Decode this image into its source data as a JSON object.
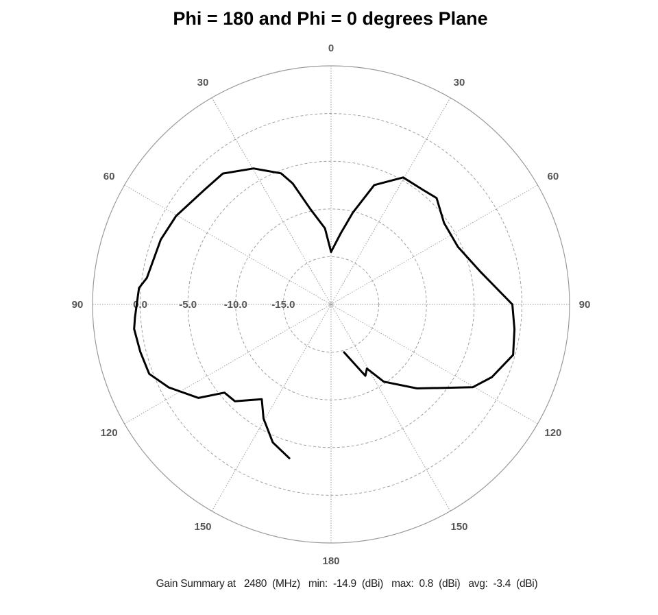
{
  "chart_data": {
    "type": "polar-line",
    "title": "Phi = 180 and Phi = 0 degrees Plane",
    "angular_axis": {
      "zero_location": "top",
      "tick_step_deg": 30,
      "tick_labels": [
        {
          "angle": 0,
          "label": "0"
        },
        {
          "angle": 30,
          "label": "30"
        },
        {
          "angle": 60,
          "label": "60"
        },
        {
          "angle": 90,
          "label": "90"
        },
        {
          "angle": 120,
          "label": "120"
        },
        {
          "angle": 150,
          "label": "150"
        },
        {
          "angle": 180,
          "label": "180"
        },
        {
          "angle": -150,
          "label": "150"
        },
        {
          "angle": -120,
          "label": "120"
        },
        {
          "angle": -90,
          "label": "90"
        },
        {
          "angle": -60,
          "label": "60"
        },
        {
          "angle": -30,
          "label": "30"
        }
      ],
      "note": "Right half = Phi 0 plane, left half = Phi 180 plane; theta 0-180 on each side"
    },
    "radial_axis": {
      "unit": "dBi",
      "range": [
        -20,
        5
      ],
      "rings": [
        -15,
        -10,
        -5,
        0,
        5
      ],
      "ring_labels": [
        "0.0",
        "-5.0",
        "-10.0",
        "-15.0"
      ],
      "ring_label_values": [
        0,
        -5,
        -10,
        -15
      ],
      "grid": true
    },
    "series": [
      {
        "name": "Phi = 0",
        "side": "right",
        "color": "#000000",
        "points": [
          [
            0,
            -14.5
          ],
          [
            7.7,
            -12.5
          ],
          [
            13.4,
            -10.1
          ],
          [
            19.9,
            -6.7
          ],
          [
            29.6,
            -4.7
          ],
          [
            39.1,
            -4.6
          ],
          [
            44.8,
            -4.3
          ],
          [
            54.2,
            -5.4
          ],
          [
            65.6,
            -5.4
          ],
          [
            77.5,
            -4.0
          ],
          [
            90,
            -1.0
          ],
          [
            97.7,
            -0.6
          ],
          [
            105.5,
            -0.2
          ],
          [
            114.3,
            -1.5
          ],
          [
            120.3,
            -2.8
          ],
          [
            134.3,
            -7.4
          ],
          [
            145.7,
            -10.2
          ],
          [
            150.8,
            -12.3
          ],
          [
            154.3,
            -11.7
          ],
          [
            155.9,
            -12.4
          ],
          [
            164.8,
            -14.8
          ]
        ]
      },
      {
        "name": "Phi = 180",
        "side": "left",
        "color": "#000000",
        "points": [
          [
            0,
            -14.5
          ],
          [
            4.6,
            -12.0
          ],
          [
            12.2,
            -9.8
          ],
          [
            17.6,
            -6.7
          ],
          [
            20.9,
            -5.3
          ],
          [
            29.7,
            -3.6
          ],
          [
            39.6,
            -2.2
          ],
          [
            47.9,
            -2.1
          ],
          [
            60.3,
            -1.3
          ],
          [
            69.2,
            -0.9
          ],
          [
            81.8,
            -0.5
          ],
          [
            85.1,
            0.2
          ],
          [
            93.8,
            0.6
          ],
          [
            97.1,
            0.8
          ],
          [
            103.9,
            0.6
          ],
          [
            110.9,
            0.4
          ],
          [
            117.1,
            -0.9
          ],
          [
            125.2,
            -3.0
          ],
          [
            129.6,
            -5.5
          ],
          [
            135.2,
            -5.7
          ],
          [
            143.8,
            -7.7
          ],
          [
            149.4,
            -6.1
          ],
          [
            157.1,
            -4.3
          ],
          [
            164.8,
            -3.3
          ]
        ]
      }
    ],
    "summary": {
      "prefix": "Gain Summary at",
      "frequency": "2480",
      "frequency_unit": "(MHz)",
      "min_label": "min:",
      "min": "-14.9",
      "max_label": "max:",
      "max": "0.8",
      "avg_label": "avg:",
      "avg": "-3.4",
      "unit": "(dBi)"
    }
  }
}
